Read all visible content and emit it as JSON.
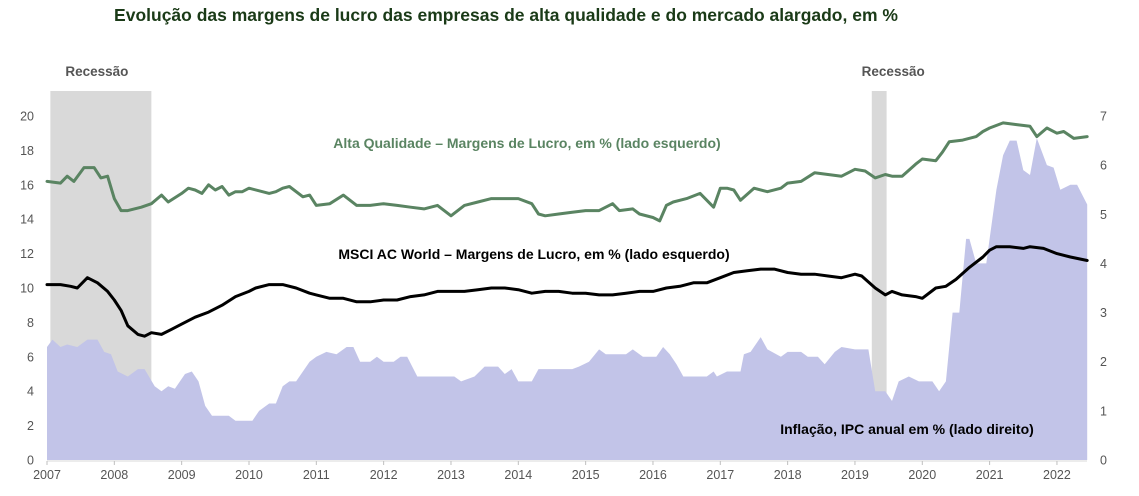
{
  "chart_data": {
    "type": "line",
    "title": "Evolução das margens de lucro das empresas de alta qualidade e do mercado alargado, em %",
    "xlabel": "",
    "ylabel_left": "",
    "ylabel_right": "",
    "xlim": [
      2007,
      2022.45
    ],
    "ylim_left": [
      0,
      20
    ],
    "ylim_right": [
      0,
      7
    ],
    "x_ticks": [
      "2007",
      "2008",
      "2009",
      "2010",
      "2011",
      "2012",
      "2013",
      "2014",
      "2015",
      "2016",
      "2017",
      "2018",
      "2019",
      "2020",
      "2021",
      "2022"
    ],
    "y_ticks_left": [
      "0",
      "2",
      "4",
      "6",
      "8",
      "10",
      "12",
      "14",
      "16",
      "18",
      "20"
    ],
    "y_ticks_right": [
      "0",
      "1",
      "2",
      "3",
      "4",
      "5",
      "6",
      "7"
    ],
    "grid": false,
    "recessions": [
      {
        "label": "Recessão",
        "start": 2007.05,
        "end": 2008.55
      },
      {
        "label": "Recessão",
        "start": 2019.25,
        "end": 2019.47
      }
    ],
    "series": [
      {
        "name": "Alta Qualidade – Margens de Lucro, em % (lado esquerdo)",
        "axis": "left",
        "type": "line",
        "color": "#5a8462",
        "x": [
          2007.0,
          2007.2,
          2007.3,
          2007.4,
          2007.55,
          2007.7,
          2007.8,
          2007.9,
          2008.0,
          2008.1,
          2008.2,
          2008.4,
          2008.55,
          2008.7,
          2008.8,
          2009.0,
          2009.1,
          2009.2,
          2009.3,
          2009.4,
          2009.5,
          2009.6,
          2009.7,
          2009.8,
          2009.9,
          2010.0,
          2010.2,
          2010.3,
          2010.4,
          2010.5,
          2010.6,
          2010.8,
          2010.9,
          2011.0,
          2011.2,
          2011.4,
          2011.6,
          2011.8,
          2012.0,
          2012.2,
          2012.4,
          2012.6,
          2012.8,
          2013.0,
          2013.2,
          2013.4,
          2013.6,
          2013.8,
          2014.0,
          2014.2,
          2014.3,
          2014.4,
          2014.6,
          2014.8,
          2015.0,
          2015.2,
          2015.4,
          2015.5,
          2015.7,
          2015.8,
          2016.0,
          2016.1,
          2016.2,
          2016.3,
          2016.5,
          2016.7,
          2016.9,
          2017.0,
          2017.1,
          2017.2,
          2017.3,
          2017.5,
          2017.7,
          2017.9,
          2018.0,
          2018.2,
          2018.4,
          2018.6,
          2018.8,
          2019.0,
          2019.15,
          2019.3,
          2019.45,
          2019.55,
          2019.7,
          2019.9,
          2020.0,
          2020.2,
          2020.3,
          2020.4,
          2020.6,
          2020.8,
          2020.9,
          2021.0,
          2021.2,
          2021.4,
          2021.6,
          2021.7,
          2021.85,
          2022.0,
          2022.1,
          2022.25,
          2022.45
        ],
        "values": [
          16.2,
          16.1,
          16.5,
          16.2,
          17.0,
          17.0,
          16.4,
          16.5,
          15.2,
          14.5,
          14.5,
          14.7,
          14.9,
          15.4,
          15.0,
          15.5,
          15.8,
          15.7,
          15.5,
          16.0,
          15.7,
          15.9,
          15.4,
          15.6,
          15.6,
          15.8,
          15.6,
          15.5,
          15.6,
          15.8,
          15.9,
          15.3,
          15.4,
          14.8,
          14.9,
          15.4,
          14.8,
          14.8,
          14.9,
          14.8,
          14.7,
          14.6,
          14.8,
          14.2,
          14.8,
          15.0,
          15.2,
          15.2,
          15.2,
          14.9,
          14.3,
          14.2,
          14.3,
          14.4,
          14.5,
          14.5,
          14.9,
          14.5,
          14.6,
          14.3,
          14.1,
          13.9,
          14.8,
          15.0,
          15.2,
          15.5,
          14.7,
          15.8,
          15.8,
          15.7,
          15.1,
          15.8,
          15.6,
          15.8,
          16.1,
          16.2,
          16.7,
          16.6,
          16.5,
          16.9,
          16.8,
          16.4,
          16.6,
          16.5,
          16.5,
          17.2,
          17.5,
          17.4,
          17.9,
          18.5,
          18.6,
          18.8,
          19.1,
          19.3,
          19.6,
          19.5,
          19.4,
          18.8,
          19.3,
          19.0,
          19.1,
          18.7,
          18.8
        ]
      },
      {
        "name": "MSCI AC World – Margens de Lucro, em % (lado esquerdo)",
        "axis": "left",
        "type": "line",
        "color": "#000000",
        "x": [
          2007.0,
          2007.2,
          2007.35,
          2007.45,
          2007.6,
          2007.75,
          2007.9,
          2008.0,
          2008.1,
          2008.2,
          2008.35,
          2008.45,
          2008.55,
          2008.7,
          2008.85,
          2009.0,
          2009.2,
          2009.4,
          2009.6,
          2009.8,
          2010.0,
          2010.1,
          2010.3,
          2010.5,
          2010.7,
          2010.9,
          2011.0,
          2011.2,
          2011.4,
          2011.6,
          2011.8,
          2012.0,
          2012.2,
          2012.4,
          2012.6,
          2012.8,
          2013.0,
          2013.2,
          2013.4,
          2013.6,
          2013.8,
          2014.0,
          2014.2,
          2014.4,
          2014.6,
          2014.8,
          2015.0,
          2015.2,
          2015.4,
          2015.6,
          2015.8,
          2016.0,
          2016.2,
          2016.4,
          2016.6,
          2016.8,
          2017.0,
          2017.2,
          2017.4,
          2017.6,
          2017.8,
          2018.0,
          2018.2,
          2018.4,
          2018.6,
          2018.8,
          2019.0,
          2019.1,
          2019.3,
          2019.45,
          2019.55,
          2019.7,
          2019.9,
          2020.0,
          2020.2,
          2020.35,
          2020.5,
          2020.7,
          2020.9,
          2021.0,
          2021.1,
          2021.3,
          2021.5,
          2021.6,
          2021.8,
          2022.0,
          2022.2,
          2022.45
        ],
        "values": [
          10.2,
          10.2,
          10.1,
          10.0,
          10.6,
          10.3,
          9.8,
          9.3,
          8.7,
          7.8,
          7.3,
          7.2,
          7.4,
          7.3,
          7.6,
          7.9,
          8.3,
          8.6,
          9.0,
          9.5,
          9.8,
          10.0,
          10.2,
          10.2,
          10.0,
          9.7,
          9.6,
          9.4,
          9.4,
          9.2,
          9.2,
          9.3,
          9.3,
          9.5,
          9.6,
          9.8,
          9.8,
          9.8,
          9.9,
          10.0,
          10.0,
          9.9,
          9.7,
          9.8,
          9.8,
          9.7,
          9.7,
          9.6,
          9.6,
          9.7,
          9.8,
          9.8,
          10.0,
          10.1,
          10.3,
          10.3,
          10.6,
          10.9,
          11.0,
          11.1,
          11.1,
          10.9,
          10.8,
          10.8,
          10.7,
          10.6,
          10.8,
          10.7,
          10.0,
          9.6,
          9.8,
          9.6,
          9.5,
          9.4,
          10.0,
          10.1,
          10.5,
          11.2,
          11.8,
          12.2,
          12.4,
          12.4,
          12.3,
          12.4,
          12.3,
          12.0,
          11.8,
          11.6
        ]
      },
      {
        "name": "Inflação, IPC anual em % (lado direito)",
        "axis": "right",
        "type": "area",
        "color": "#c2c4e8",
        "x": [
          2007.0,
          2007.08,
          2007.2,
          2007.3,
          2007.45,
          2007.6,
          2007.75,
          2007.85,
          2007.95,
          2008.05,
          2008.2,
          2008.35,
          2008.45,
          2008.6,
          2008.7,
          2008.8,
          2008.9,
          2009.05,
          2009.15,
          2009.25,
          2009.35,
          2009.45,
          2009.7,
          2009.8,
          2010.05,
          2010.15,
          2010.3,
          2010.4,
          2010.5,
          2010.6,
          2010.7,
          2010.9,
          2011.0,
          2011.15,
          2011.3,
          2011.45,
          2011.55,
          2011.65,
          2011.8,
          2011.9,
          2012.0,
          2012.15,
          2012.25,
          2012.35,
          2012.5,
          2012.7,
          2012.9,
          2013.05,
          2013.15,
          2013.35,
          2013.5,
          2013.7,
          2013.8,
          2013.9,
          2014.0,
          2014.2,
          2014.3,
          2014.6,
          2014.8,
          2014.9,
          2015.05,
          2015.2,
          2015.3,
          2015.6,
          2015.7,
          2015.85,
          2016.05,
          2016.15,
          2016.25,
          2016.35,
          2016.45,
          2016.8,
          2016.9,
          2016.95,
          2017.1,
          2017.3,
          2017.35,
          2017.45,
          2017.6,
          2017.7,
          2017.9,
          2018.0,
          2018.2,
          2018.3,
          2018.45,
          2018.55,
          2018.7,
          2018.8,
          2019.0,
          2019.2,
          2019.3,
          2019.45,
          2019.55,
          2019.65,
          2019.8,
          2019.95,
          2020.15,
          2020.25,
          2020.35,
          2020.45,
          2020.55,
          2020.65,
          2020.7,
          2020.8,
          2020.95,
          2021.0,
          2021.1,
          2021.2,
          2021.3,
          2021.4,
          2021.5,
          2021.6,
          2021.7,
          2021.85,
          2021.95,
          2022.05,
          2022.2,
          2022.3,
          2022.45
        ],
        "values": [
          2.3,
          2.45,
          2.3,
          2.35,
          2.3,
          2.45,
          2.45,
          2.2,
          2.15,
          1.8,
          1.7,
          1.85,
          1.85,
          1.5,
          1.4,
          1.5,
          1.45,
          1.75,
          1.8,
          1.6,
          1.1,
          0.9,
          0.9,
          0.8,
          0.8,
          1.0,
          1.15,
          1.15,
          1.5,
          1.6,
          1.6,
          2.0,
          2.1,
          2.2,
          2.15,
          2.3,
          2.3,
          2.0,
          2.0,
          2.1,
          2.0,
          2.0,
          2.1,
          2.1,
          1.7,
          1.7,
          1.7,
          1.7,
          1.6,
          1.7,
          1.9,
          1.9,
          1.75,
          1.85,
          1.6,
          1.6,
          1.85,
          1.85,
          1.85,
          1.9,
          2.0,
          2.25,
          2.15,
          2.15,
          2.25,
          2.1,
          2.1,
          2.3,
          2.15,
          1.95,
          1.7,
          1.7,
          1.8,
          1.7,
          1.8,
          1.8,
          2.15,
          2.2,
          2.5,
          2.25,
          2.1,
          2.2,
          2.2,
          2.1,
          2.1,
          1.95,
          2.2,
          2.3,
          2.25,
          2.25,
          1.4,
          1.4,
          1.2,
          1.6,
          1.7,
          1.6,
          1.6,
          1.4,
          1.6,
          3.0,
          3.0,
          4.5,
          4.5,
          4.0,
          4.0,
          4.5,
          5.5,
          6.2,
          6.5,
          6.5,
          5.9,
          5.8,
          6.55,
          6.0,
          5.95,
          5.5,
          5.6,
          5.6,
          5.2
        ]
      }
    ],
    "annotations": [
      {
        "text": "Alta Qualidade – Margens de Lucro, em % (lado esquerdo)",
        "color": "#5a8462"
      },
      {
        "text": "MSCI AC World – Margens de Lucro, em % (lado esquerdo)",
        "color": "#000000"
      },
      {
        "text": "Inflação, IPC anual em % (lado direito)",
        "color": "#000000"
      }
    ],
    "recession_label": "Recessão"
  }
}
